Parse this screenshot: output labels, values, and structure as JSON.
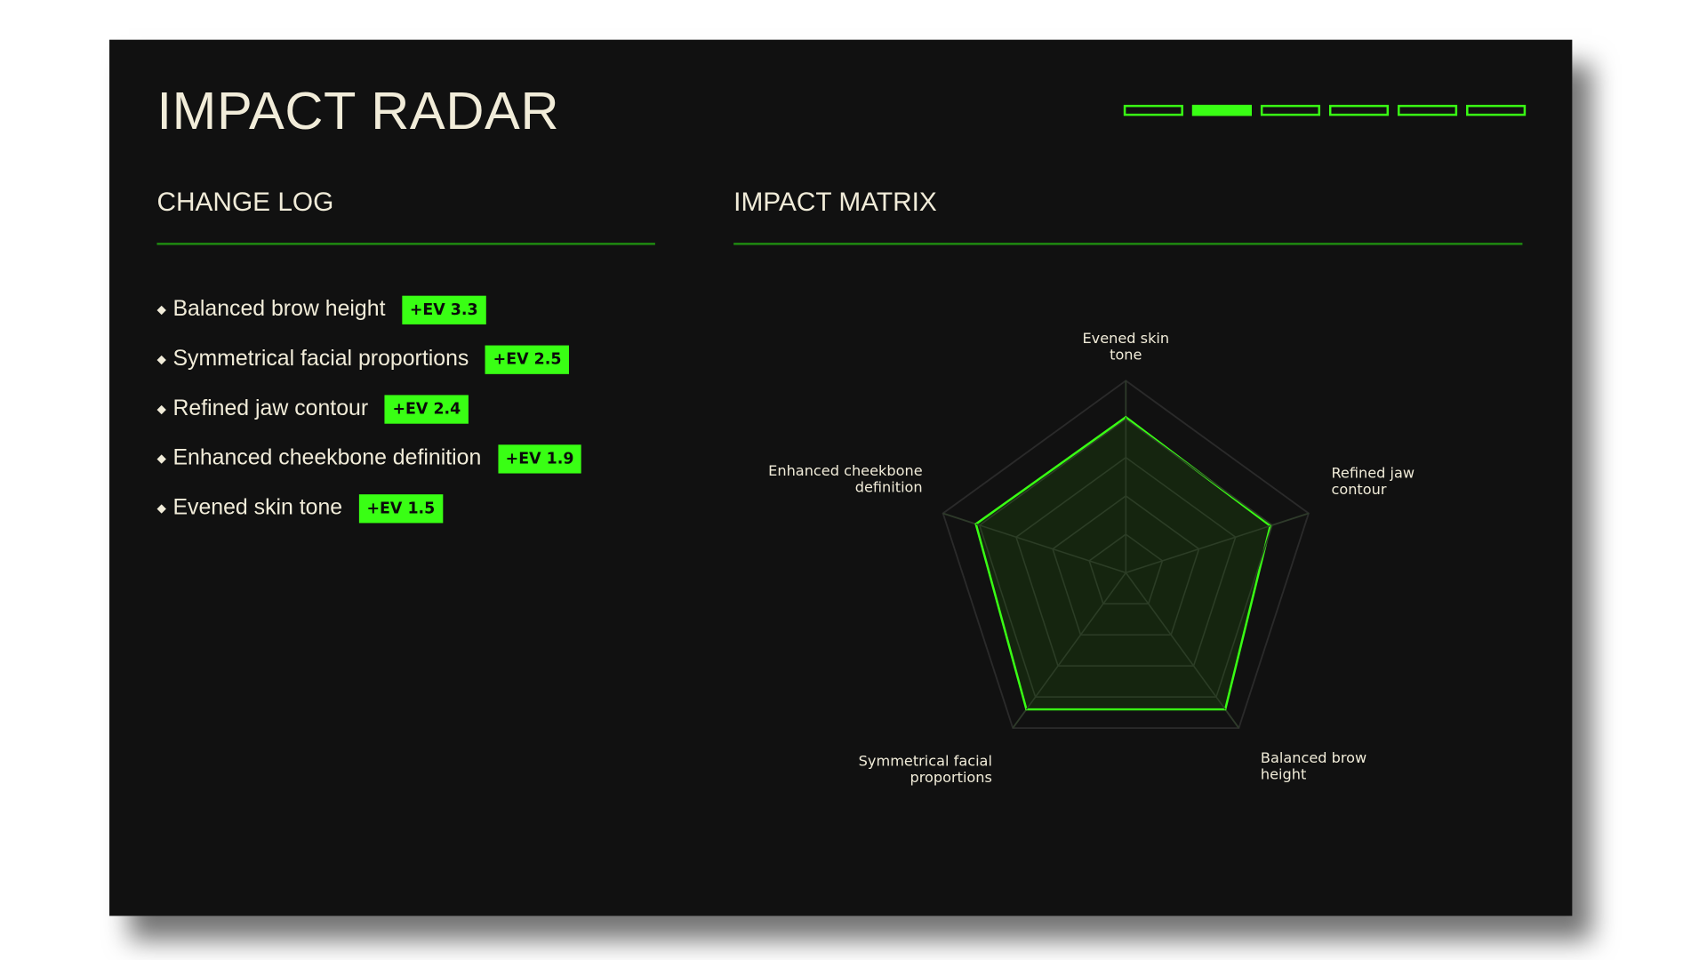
{
  "header": {
    "title": "IMPACT RADAR"
  },
  "pager": {
    "count": 6,
    "active_index": 1
  },
  "change_log": {
    "title": "CHANGE LOG",
    "items": [
      {
        "label": "Balanced brow height",
        "badge": "+EV 3.3"
      },
      {
        "label": "Symmetrical facial proportions",
        "badge": "+EV 2.5"
      },
      {
        "label": "Refined jaw contour",
        "badge": "+EV 2.4"
      },
      {
        "label": "Enhanced cheekbone definition",
        "badge": "+EV 1.9"
      },
      {
        "label": "Evened skin tone",
        "badge": "+EV 1.5"
      }
    ]
  },
  "impact_matrix": {
    "title": "IMPACT MATRIX"
  },
  "colors": {
    "accent": "#39ff14",
    "background": "#111111",
    "text": "#f1ecd9",
    "grid": "#2e2e2e",
    "fill": "#16290f"
  },
  "chart_data": {
    "type": "radar",
    "axes": [
      {
        "label": [
          "Evened skin",
          "tone"
        ],
        "value": 81
      },
      {
        "label": [
          "Refined jaw",
          "contour"
        ],
        "value": 79
      },
      {
        "label": [
          "Balanced brow",
          "height"
        ],
        "value": 88
      },
      {
        "label": [
          "Symmetrical facial",
          "proportions"
        ],
        "value": 88
      },
      {
        "label": [
          "Enhanced cheekbone",
          "definition"
        ],
        "value": 82
      }
    ],
    "range": [
      0,
      100
    ],
    "rings": 5,
    "grid": true
  }
}
